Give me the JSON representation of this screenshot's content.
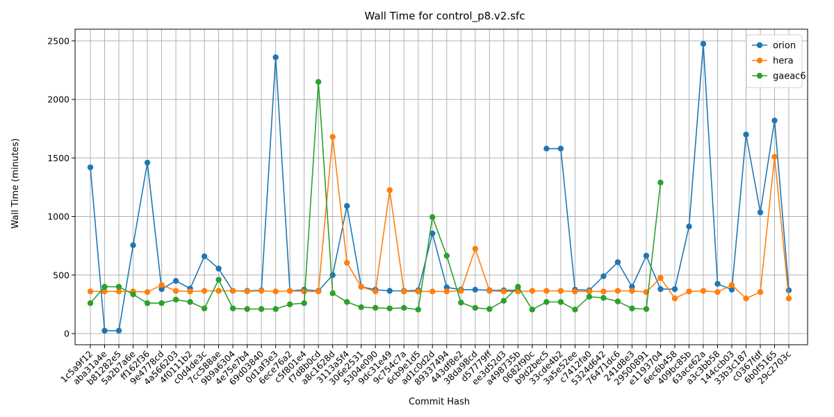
{
  "chart_data": {
    "type": "line",
    "title": "Wall Time for control_p8.v2.sfc",
    "xlabel": "Commit Hash",
    "ylabel": "Wall Time (minutes)",
    "ylim": [
      -95,
      2600
    ],
    "yticks": [
      0,
      500,
      1000,
      1500,
      2000,
      2500
    ],
    "grid": true,
    "legend_position": "top-right",
    "categories": [
      "1c5a9f12",
      "aba31a4e",
      "b81282e5",
      "5a2b7a6e",
      "ff162f36",
      "9e4778cd",
      "4a566203",
      "4f0111b2",
      "c0d4de3c",
      "7cc588ae",
      "9b9a6304",
      "4e75e7b4",
      "69d03840",
      "0d1af3e3",
      "6ece76a2",
      "c5f801e4",
      "f7d8b0cd",
      "a8c1628d",
      "3113a5f4",
      "306e2531",
      "5304e090",
      "9dc31e49",
      "9c754c7a",
      "6cb9e1d5",
      "ad1c0d2d",
      "89337494",
      "443df8e2",
      "38da98cd",
      "d57779ff",
      "ee3d52d3",
      "a498735b",
      "0682f90c",
      "b9d2bec5",
      "33cde4b2",
      "3a5e52ee",
      "c7412fa0",
      "5324d642",
      "76471dc6",
      "241d8e3",
      "29500891",
      "e1193704",
      "6ec6b458",
      "409bc85b",
      "63ace62a",
      "a3c3bb58",
      "144ccb03",
      "33b3c187",
      "c0367fdf",
      "6b0f5165",
      "29c2703c"
    ],
    "series": [
      {
        "name": "orion",
        "color": "#1f77b4",
        "values": [
          1420,
          25,
          25,
          755,
          1460,
          380,
          450,
          385,
          660,
          555,
          365,
          365,
          370,
          2360,
          365,
          375,
          365,
          500,
          1090,
          400,
          375,
          365,
          365,
          370,
          855,
          395,
          375,
          375,
          370,
          370,
          370,
          null,
          1580,
          1580,
          375,
          370,
          490,
          610,
          400,
          665,
          380,
          380,
          915,
          2475,
          425,
          375,
          1700,
          1035,
          1820,
          370
        ]
      },
      {
        "name": "hera",
        "color": "#ff7f0e",
        "values": [
          360,
          360,
          360,
          360,
          355,
          415,
          365,
          360,
          365,
          365,
          365,
          360,
          365,
          360,
          365,
          360,
          360,
          1680,
          605,
          400,
          360,
          1225,
          360,
          360,
          360,
          360,
          365,
          725,
          365,
          360,
          360,
          365,
          365,
          365,
          360,
          360,
          360,
          365,
          365,
          355,
          475,
          300,
          360,
          365,
          355,
          415,
          300,
          355,
          1510,
          300
        ]
      },
      {
        "name": "gaeac6",
        "color": "#2ca02c",
        "values": [
          260,
          400,
          400,
          335,
          260,
          260,
          290,
          270,
          215,
          460,
          215,
          210,
          210,
          210,
          250,
          260,
          2150,
          345,
          270,
          225,
          220,
          215,
          220,
          205,
          995,
          665,
          265,
          220,
          210,
          280,
          400,
          205,
          270,
          270,
          205,
          315,
          305,
          275,
          215,
          210,
          1290,
          null,
          null,
          null,
          null,
          null,
          null,
          null,
          null,
          null
        ]
      }
    ]
  }
}
